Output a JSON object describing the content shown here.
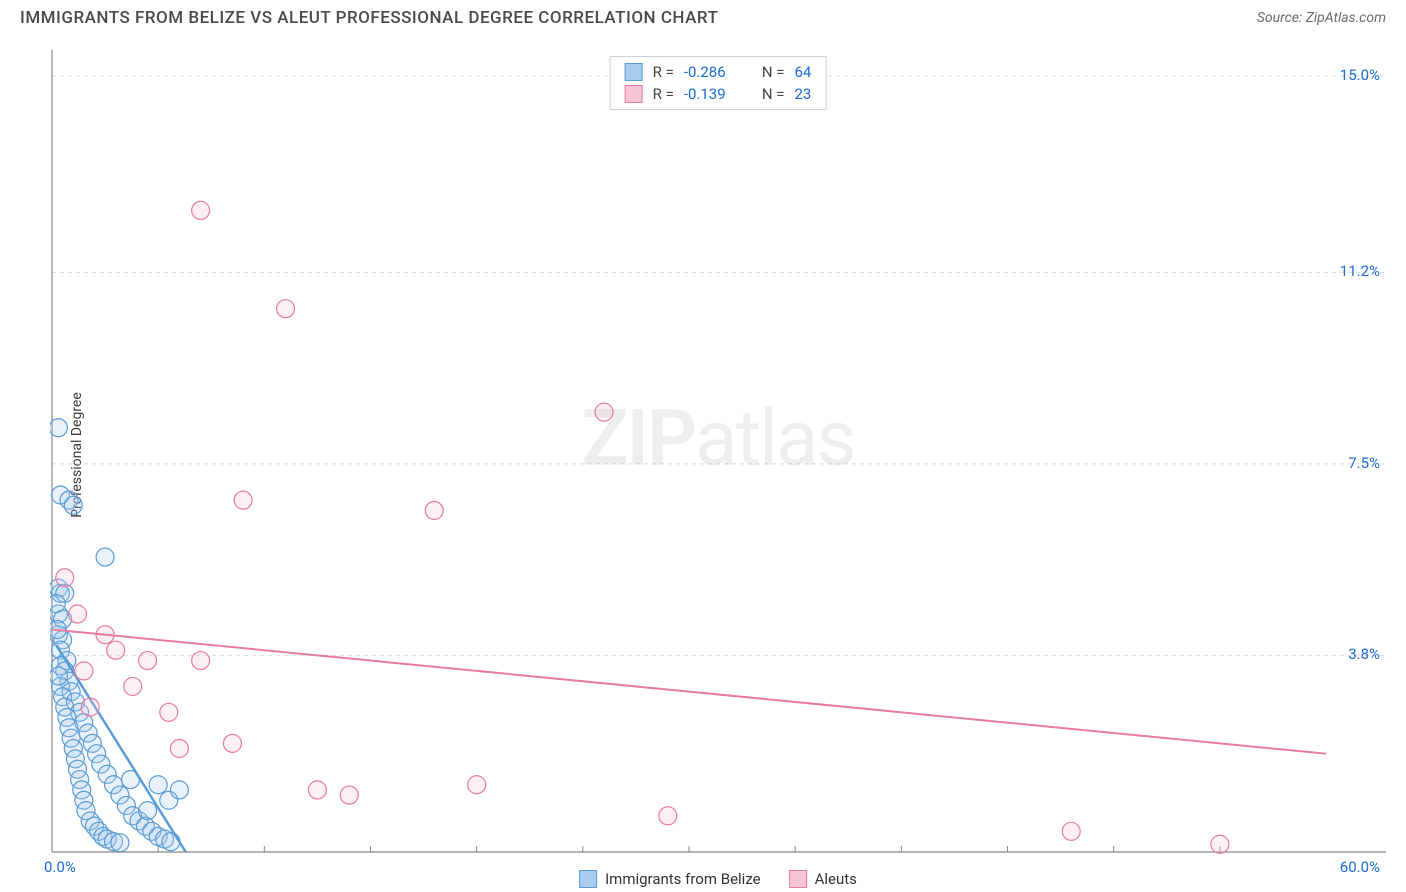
{
  "header": {
    "title": "IMMIGRANTS FROM BELIZE VS ALEUT PROFESSIONAL DEGREE CORRELATION CHART",
    "source": "Source: ZipAtlas.com"
  },
  "watermark": {
    "zip": "ZIP",
    "atlas": "atlas"
  },
  "chart": {
    "type": "scatter",
    "ylabel": "Professional Degree",
    "xlim": [
      0,
      60
    ],
    "ylim": [
      0,
      15.5
    ],
    "background_color": "#ffffff",
    "grid_color": "#dcdcdc",
    "grid_dash": "4,4",
    "axis_color": "#888888",
    "yticks": [
      {
        "v": 15.0,
        "label": "15.0%"
      },
      {
        "v": 11.2,
        "label": "11.2%"
      },
      {
        "v": 7.5,
        "label": "7.5%"
      },
      {
        "v": 3.8,
        "label": "3.8%"
      }
    ],
    "xticks_minor": [
      5,
      10,
      15,
      20,
      25,
      30,
      35,
      40,
      45,
      50,
      55
    ],
    "xaxis_labels": {
      "min": "0.0%",
      "max": "60.0%"
    },
    "marker_radius": 9,
    "marker_stroke_width": 1.2,
    "marker_fill_opacity": 0.25,
    "series": [
      {
        "name": "Immigrants from Belize",
        "color_stroke": "#5a9bd5",
        "color_fill": "#a8cdef",
        "R": "-0.286",
        "N": "64",
        "trend": {
          "x1": 0.2,
          "y1": 4.0,
          "x2": 6.3,
          "y2": 0.0,
          "width": 2.5
        },
        "points": [
          [
            0.3,
            8.2
          ],
          [
            0.4,
            6.9
          ],
          [
            0.8,
            6.8
          ],
          [
            1.0,
            6.7
          ],
          [
            2.5,
            5.7
          ],
          [
            0.3,
            5.1
          ],
          [
            0.4,
            5.0
          ],
          [
            0.6,
            5.0
          ],
          [
            0.3,
            4.6
          ],
          [
            0.5,
            4.5
          ],
          [
            0.3,
            4.2
          ],
          [
            0.5,
            4.1
          ],
          [
            0.4,
            3.9
          ],
          [
            0.7,
            3.7
          ],
          [
            0.4,
            3.6
          ],
          [
            0.6,
            3.5
          ],
          [
            0.8,
            3.3
          ],
          [
            0.4,
            3.2
          ],
          [
            0.9,
            3.1
          ],
          [
            0.5,
            3.0
          ],
          [
            1.1,
            2.9
          ],
          [
            0.6,
            2.8
          ],
          [
            1.3,
            2.7
          ],
          [
            0.7,
            2.6
          ],
          [
            1.5,
            2.5
          ],
          [
            0.8,
            2.4
          ],
          [
            1.7,
            2.3
          ],
          [
            0.9,
            2.2
          ],
          [
            1.9,
            2.1
          ],
          [
            1.0,
            2.0
          ],
          [
            2.1,
            1.9
          ],
          [
            1.1,
            1.8
          ],
          [
            2.3,
            1.7
          ],
          [
            1.2,
            1.6
          ],
          [
            2.6,
            1.5
          ],
          [
            1.3,
            1.4
          ],
          [
            2.9,
            1.3
          ],
          [
            1.4,
            1.2
          ],
          [
            3.2,
            1.1
          ],
          [
            1.5,
            1.0
          ],
          [
            3.5,
            0.9
          ],
          [
            1.6,
            0.8
          ],
          [
            3.8,
            0.7
          ],
          [
            1.8,
            0.6
          ],
          [
            4.1,
            0.6
          ],
          [
            2.0,
            0.5
          ],
          [
            4.4,
            0.5
          ],
          [
            2.2,
            0.4
          ],
          [
            4.7,
            0.4
          ],
          [
            2.4,
            0.3
          ],
          [
            5.0,
            0.3
          ],
          [
            2.6,
            0.25
          ],
          [
            5.3,
            0.25
          ],
          [
            2.9,
            0.2
          ],
          [
            5.6,
            0.2
          ],
          [
            3.2,
            0.18
          ],
          [
            5.0,
            1.3
          ],
          [
            4.5,
            0.8
          ],
          [
            3.7,
            1.4
          ],
          [
            5.5,
            1.0
          ],
          [
            6.0,
            1.2
          ],
          [
            0.2,
            4.8
          ],
          [
            0.25,
            4.3
          ],
          [
            0.3,
            3.4
          ]
        ]
      },
      {
        "name": "Aleuts",
        "color_stroke": "#e87ba0",
        "color_fill": "#f6c5d6",
        "R": "-0.139",
        "N": "23",
        "trend": {
          "x1": 0,
          "y1": 4.3,
          "x2": 60,
          "y2": 1.9,
          "width": 2
        },
        "points": [
          [
            7.0,
            12.4
          ],
          [
            11.0,
            10.5
          ],
          [
            26.0,
            8.5
          ],
          [
            9.0,
            6.8
          ],
          [
            18.0,
            6.6
          ],
          [
            0.6,
            5.3
          ],
          [
            1.2,
            4.6
          ],
          [
            3.0,
            3.9
          ],
          [
            4.5,
            3.7
          ],
          [
            7.0,
            3.7
          ],
          [
            1.5,
            3.5
          ],
          [
            3.8,
            3.2
          ],
          [
            5.5,
            2.7
          ],
          [
            8.5,
            2.1
          ],
          [
            12.5,
            1.2
          ],
          [
            14.0,
            1.1
          ],
          [
            20.0,
            1.3
          ],
          [
            29.0,
            0.7
          ],
          [
            48.0,
            0.4
          ],
          [
            55.0,
            0.15
          ],
          [
            2.5,
            4.2
          ],
          [
            6.0,
            2.0
          ],
          [
            1.8,
            2.8
          ]
        ]
      }
    ],
    "legend_bottom": [
      {
        "label": "Immigrants from Belize",
        "stroke": "#5a9bd5",
        "fill": "#a8cdef"
      },
      {
        "label": "Aleuts",
        "stroke": "#e87ba0",
        "fill": "#f6c5d6"
      }
    ]
  }
}
